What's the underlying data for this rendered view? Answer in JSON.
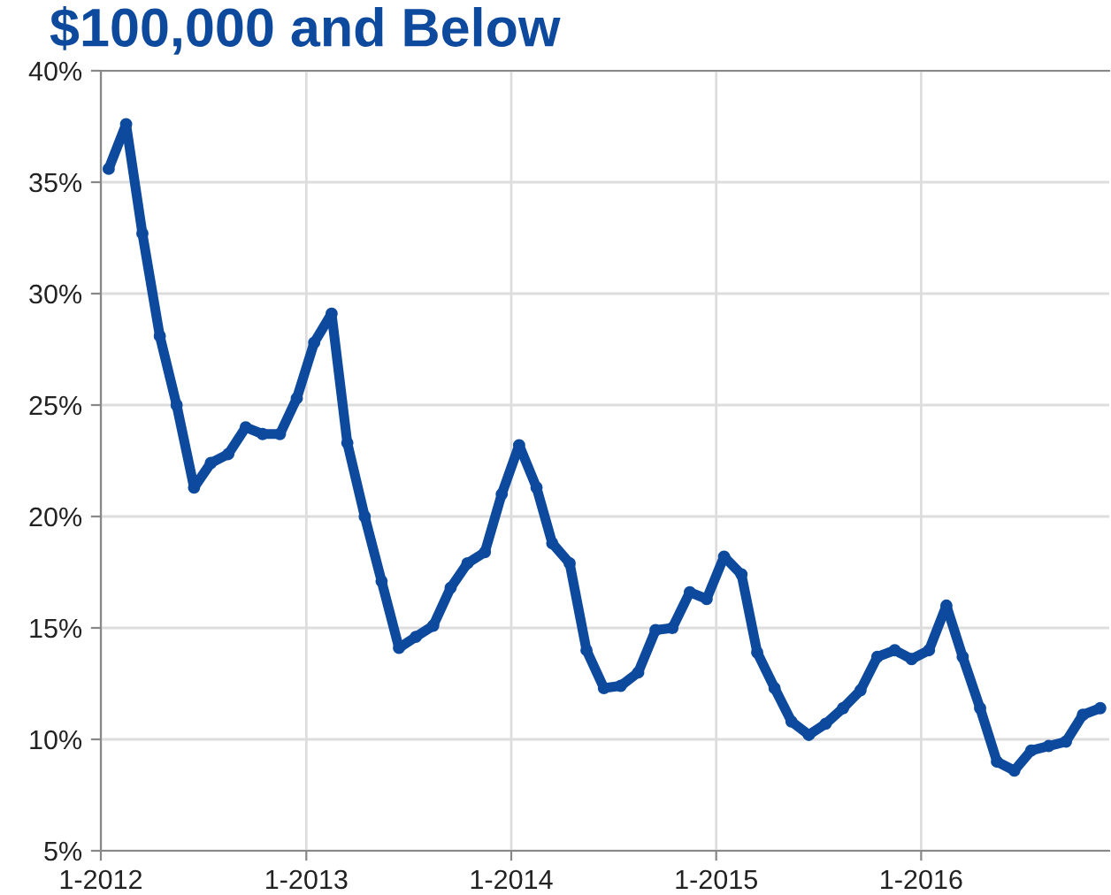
{
  "chart_data": {
    "type": "line",
    "title": "$100,000 and Below",
    "x": [
      "2012-01-15",
      "2012-02-15",
      "2012-03-15",
      "2012-04-15",
      "2012-05-15",
      "2012-06-15",
      "2012-07-15",
      "2012-08-15",
      "2012-09-15",
      "2012-10-15",
      "2012-11-15",
      "2012-12-15",
      "2013-01-15",
      "2013-02-15",
      "2013-03-15",
      "2013-04-15",
      "2013-05-15",
      "2013-06-15",
      "2013-07-15",
      "2013-08-15",
      "2013-09-15",
      "2013-10-15",
      "2013-11-15",
      "2013-12-15",
      "2014-01-15",
      "2014-02-15",
      "2014-03-15",
      "2014-04-15",
      "2014-05-15",
      "2014-06-15",
      "2014-07-15",
      "2014-08-15",
      "2014-09-15",
      "2014-10-15",
      "2014-11-15",
      "2014-12-15",
      "2015-01-15",
      "2015-02-15",
      "2015-03-15",
      "2015-04-15",
      "2015-05-15",
      "2015-06-15",
      "2015-07-15",
      "2015-08-15",
      "2015-09-15",
      "2015-10-15",
      "2015-11-15",
      "2015-12-15",
      "2016-01-15",
      "2016-02-15",
      "2016-03-15",
      "2016-04-15",
      "2016-05-15",
      "2016-06-15",
      "2016-07-15",
      "2016-08-15",
      "2016-09-15",
      "2016-10-15",
      "2016-11-15"
    ],
    "series": [
      {
        "color": "#0d4a9e",
        "values": [
          35.6,
          37.6,
          32.7,
          28.1,
          25.0,
          21.3,
          22.4,
          22.8,
          24.0,
          23.7,
          23.7,
          25.3,
          27.8,
          29.1,
          23.3,
          20.0,
          17.1,
          14.1,
          14.6,
          15.1,
          16.8,
          17.9,
          18.4,
          21.0,
          23.2,
          21.3,
          18.8,
          17.9,
          14.0,
          12.3,
          12.4,
          13.0,
          14.9,
          15.0,
          16.6,
          16.3,
          18.2,
          17.4,
          13.9,
          12.3,
          10.8,
          10.2,
          10.7,
          11.4,
          12.2,
          13.7,
          14.0,
          13.6,
          14.0,
          16.0,
          13.7,
          11.4,
          9.0,
          8.6,
          9.5,
          9.7,
          9.9,
          11.1,
          11.4
        ]
      }
    ],
    "xlim": [
      "2012-01-01",
      "2016-12-01"
    ],
    "xticks": [
      {
        "value": "2012-01-01",
        "label": "1-2012"
      },
      {
        "value": "2013-01-01",
        "label": "1-2013"
      },
      {
        "value": "2014-01-01",
        "label": "1-2014"
      },
      {
        "value": "2015-01-01",
        "label": "1-2015"
      },
      {
        "value": "2016-01-01",
        "label": "1-2016"
      }
    ],
    "ylim": [
      5,
      40
    ],
    "yticks": [
      {
        "value": 5,
        "label": "5%"
      },
      {
        "value": 10,
        "label": "10%"
      },
      {
        "value": 15,
        "label": "15%"
      },
      {
        "value": 20,
        "label": "20%"
      },
      {
        "value": 25,
        "label": "25%"
      },
      {
        "value": 30,
        "label": "30%"
      },
      {
        "value": 35,
        "label": "35%"
      },
      {
        "value": 40,
        "label": "40%"
      }
    ],
    "grid": true,
    "marker": "circle",
    "line_style": "solid"
  }
}
